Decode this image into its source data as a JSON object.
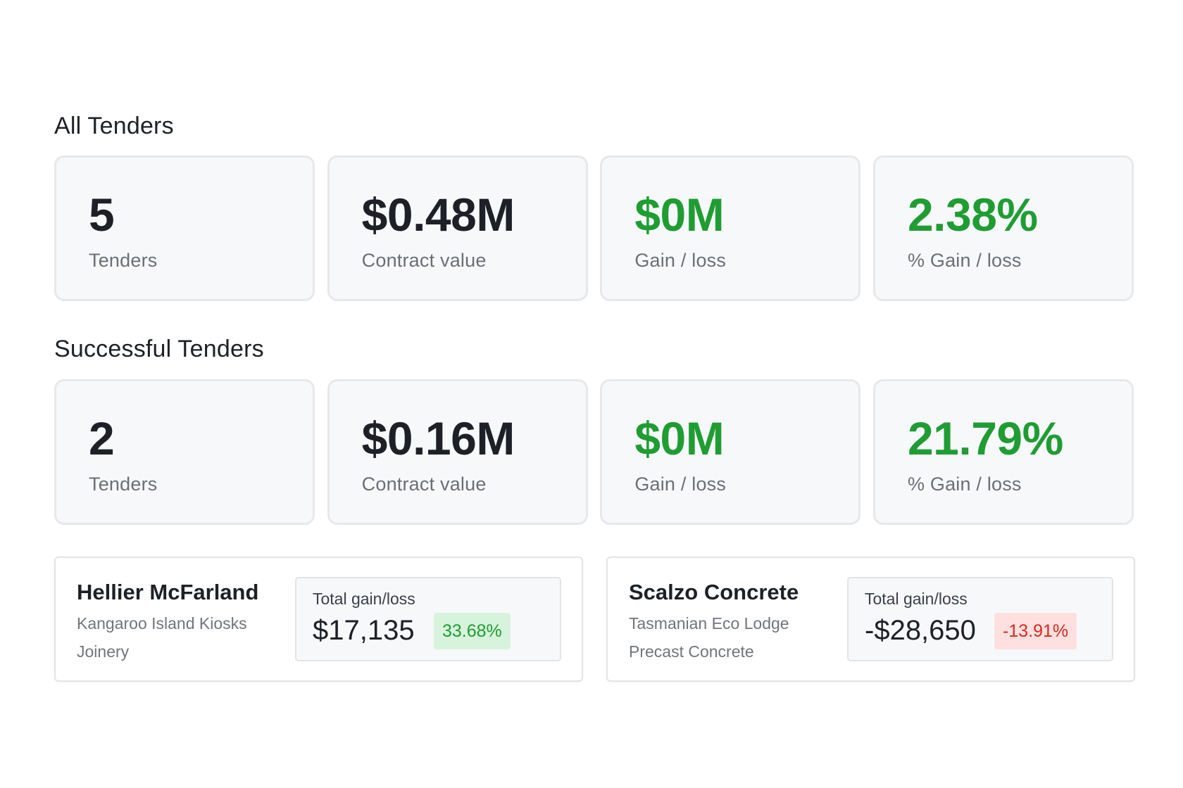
{
  "colors": {
    "positive": "#1f9d33",
    "negative": "#d52b1e",
    "positive_badge_bg": "#d8f3dc",
    "negative_badge_bg": "#fde0df",
    "card_bg": "#f7f8fa"
  },
  "all_tenders": {
    "title": "All Tenders",
    "stats": [
      {
        "value": "5",
        "label": "Tenders"
      },
      {
        "value": "$0.48M",
        "label": "Contract value"
      },
      {
        "value": "$0M",
        "label": "Gain / loss"
      },
      {
        "value": "2.38%",
        "label": "% Gain / loss"
      }
    ]
  },
  "successful_tenders": {
    "title": "Successful Tenders",
    "stats": [
      {
        "value": "2",
        "label": "Tenders"
      },
      {
        "value": "$0.16M",
        "label": "Contract value"
      },
      {
        "value": "$0M",
        "label": "Gain / loss"
      },
      {
        "value": "21.79%",
        "label": "% Gain / loss"
      }
    ]
  },
  "details": [
    {
      "name": "Hellier McFarland",
      "project": "Kangaroo Island Kiosks",
      "trade": "Joinery",
      "gain_label": "Total gain/loss",
      "gain_amount": "$17,135",
      "gain_percent": "33.68%"
    },
    {
      "name": "Scalzo Concrete",
      "project": "Tasmanian Eco Lodge",
      "trade": "Precast Concrete",
      "gain_label": "Total gain/loss",
      "gain_amount": "-$28,650",
      "gain_percent": "-13.91%"
    }
  ]
}
